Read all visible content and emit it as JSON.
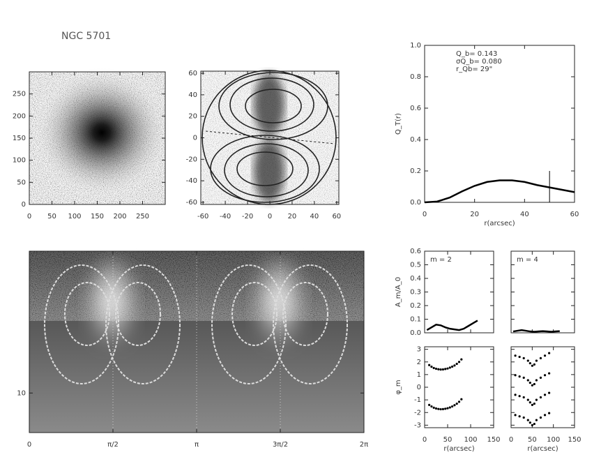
{
  "chart_data": [
    {
      "type": "image",
      "title": "NGC 5701",
      "xlim": [
        0,
        300
      ],
      "xticks": [
        0,
        50,
        100,
        150,
        200,
        250
      ],
      "ylim": [
        0,
        300
      ],
      "yticks": [
        0,
        50,
        100,
        150,
        200,
        250
      ]
    },
    {
      "type": "image",
      "xlim": [
        -62,
        62
      ],
      "xticks": [
        -60,
        -40,
        -20,
        0,
        20,
        40,
        60
      ],
      "ylim": [
        -62,
        62
      ],
      "yticks": [
        -60,
        -40,
        -20,
        0,
        20,
        40,
        60
      ]
    },
    {
      "type": "line",
      "xlabel": "r(arcsec)",
      "ylabel": "Q_T(r)",
      "annotations": [
        "Q_b= 0.143",
        "σQ_b= 0.080",
        "r_Qb=   29\""
      ],
      "x": [
        0,
        5,
        10,
        15,
        20,
        25,
        30,
        35,
        40,
        45,
        50,
        55,
        60
      ],
      "values": [
        0,
        0.005,
        0.03,
        0.07,
        0.105,
        0.13,
        0.14,
        0.14,
        0.13,
        0.11,
        0.095,
        0.08,
        0.065
      ],
      "marker_x": 50,
      "xlim": [
        0,
        60
      ],
      "xticks": [
        0,
        20,
        40,
        60
      ],
      "ylim": [
        0,
        1
      ],
      "yticks": [
        {
          "value": 0,
          "label": "0.0"
        },
        0.2,
        0.4,
        0.6,
        0.8,
        {
          "value": 1,
          "label": "1.0"
        }
      ]
    },
    {
      "type": "image",
      "log_y": true,
      "xlim": [
        0,
        6.2832
      ],
      "xticks": [
        {
          "value": 0,
          "label": "0"
        },
        {
          "value": 1.5708,
          "label": "π/2"
        },
        {
          "value": 3.1416,
          "label": "π"
        },
        {
          "value": 4.7124,
          "label": "3π/2"
        },
        {
          "value": 6.2832,
          "label": "2π"
        }
      ],
      "ylim": [
        5,
        120
      ],
      "yticks": [
        10
      ]
    },
    {
      "type": "line",
      "label": "m =  2",
      "ylabel": "A_m/A_0",
      "xtick_labels": false,
      "ytick_labels": true,
      "x": [
        5,
        15,
        25,
        35,
        45,
        55,
        65,
        75,
        85,
        95,
        105,
        115
      ],
      "values": [
        0.02,
        0.04,
        0.06,
        0.055,
        0.04,
        0.03,
        0.025,
        0.02,
        0.03,
        0.05,
        0.07,
        0.09
      ],
      "xlim": [
        0,
        150
      ],
      "xticks": [
        0,
        50,
        100,
        150
      ],
      "ylim": [
        0,
        0.6
      ],
      "yticks": [
        {
          "value": 0,
          "label": "0.0"
        },
        0.1,
        0.2,
        0.3,
        0.4,
        0.5,
        0.6
      ]
    },
    {
      "type": "line",
      "label": "m =  4",
      "xtick_labels": false,
      "ytick_labels": false,
      "x": [
        5,
        15,
        25,
        35,
        45,
        55,
        65,
        75,
        85,
        95,
        105,
        115
      ],
      "values": [
        0.01,
        0.015,
        0.02,
        0.015,
        0.01,
        0.008,
        0.01,
        0.012,
        0.01,
        0.008,
        0.01,
        0.012
      ],
      "xlim": [
        0,
        150
      ],
      "xticks": [
        0,
        50,
        100,
        150
      ],
      "ylim": [
        0,
        0.6
      ],
      "yticks": [
        0,
        0.1,
        0.2,
        0.3,
        0.4,
        0.5,
        0.6
      ]
    },
    {
      "type": "scatter",
      "ylabel": "φ_m",
      "xlabel": "r(arcsec)",
      "xtick_labels": true,
      "ytick_labels": true,
      "x": [
        10,
        15,
        20,
        25,
        30,
        35,
        40,
        45,
        50,
        55,
        60,
        65,
        70,
        75,
        80
      ],
      "series": [
        {
          "values": [
            1.75,
            1.62,
            1.52,
            1.46,
            1.42,
            1.4,
            1.41,
            1.44,
            1.48,
            1.55,
            1.63,
            1.72,
            1.85,
            2.0,
            2.2
          ]
        },
        {
          "values": [
            -1.4,
            -1.52,
            -1.62,
            -1.68,
            -1.72,
            -1.74,
            -1.73,
            -1.7,
            -1.66,
            -1.6,
            -1.52,
            -1.42,
            -1.3,
            -1.15,
            -0.95
          ]
        }
      ],
      "xlim": [
        0,
        150
      ],
      "xticks": [
        0,
        50,
        100,
        150
      ],
      "ylim": [
        -3.2,
        3.2
      ],
      "yticks": [
        -3,
        -2,
        -1,
        0,
        1,
        2,
        3
      ]
    },
    {
      "type": "scatter",
      "xlabel": "r(arcsec)",
      "xtick_labels": true,
      "ytick_labels": false,
      "x": [
        10,
        20,
        30,
        40,
        45,
        50,
        55,
        60,
        70,
        80,
        90
      ],
      "series": [
        {
          "values": [
            2.5,
            2.4,
            2.3,
            2.1,
            1.9,
            1.7,
            1.8,
            2.1,
            2.3,
            2.5,
            2.7
          ]
        },
        {
          "values": [
            0.95,
            0.85,
            0.75,
            0.55,
            0.35,
            0.15,
            0.25,
            0.55,
            0.75,
            0.95,
            1.1
          ]
        },
        {
          "values": [
            -0.6,
            -0.7,
            -0.8,
            -1.0,
            -1.2,
            -1.4,
            -1.3,
            -1.0,
            -0.8,
            -0.6,
            -0.45
          ]
        },
        {
          "values": [
            -2.2,
            -2.3,
            -2.4,
            -2.6,
            -2.8,
            -3.0,
            -2.9,
            -2.6,
            -2.4,
            -2.2,
            -2.05
          ]
        }
      ],
      "xlim": [
        0,
        150
      ],
      "xticks": [
        0,
        50,
        100,
        150
      ],
      "ylim": [
        -3.2,
        3.2
      ],
      "yticks": [
        -3,
        -2,
        -1,
        0,
        1,
        2,
        3
      ]
    }
  ]
}
